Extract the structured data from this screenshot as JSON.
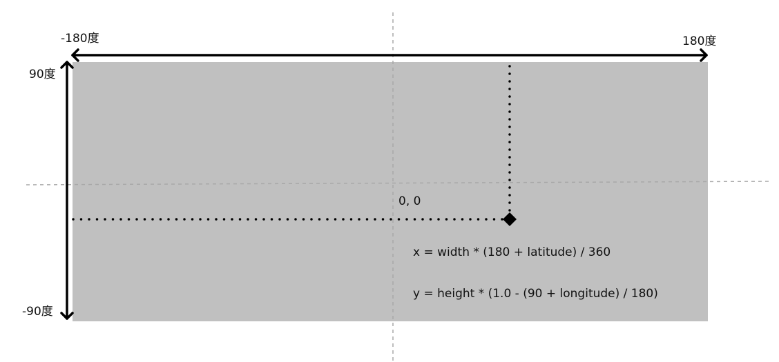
{
  "labels": {
    "left_lon": "-180度",
    "right_lon": "180度",
    "top_lat": "90度",
    "bottom_lat": "-90度",
    "origin": "0, 0"
  },
  "formulas": [
    "x = width * (180 + latitude) / 360",
    "y = height * (1.0 - (90 + longitude) / 180)"
  ]
}
